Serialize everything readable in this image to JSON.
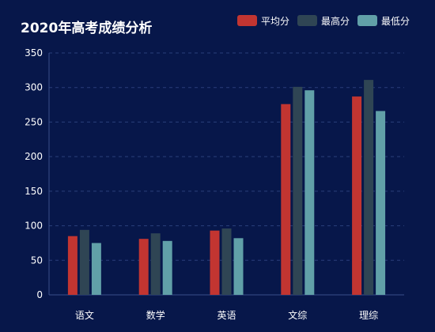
{
  "chart_data": {
    "type": "bar",
    "title": "2020年高考成绩分析",
    "categories": [
      "语文",
      "数学",
      "英语",
      "文综",
      "理综"
    ],
    "series": [
      {
        "name": "平均分",
        "color": "#c23531",
        "values": [
          85,
          81,
          93,
          276,
          287
        ]
      },
      {
        "name": "最高分",
        "color": "#2f4554",
        "values": [
          94,
          89,
          96,
          301,
          311
        ]
      },
      {
        "name": "最低分",
        "color": "#61a0a8",
        "values": [
          75,
          78,
          82,
          296,
          266
        ]
      }
    ],
    "ylim": [
      0,
      350
    ],
    "yticks": [
      0,
      50,
      100,
      150,
      200,
      250,
      300,
      350
    ],
    "grid": true,
    "legend_position": "top-right"
  }
}
